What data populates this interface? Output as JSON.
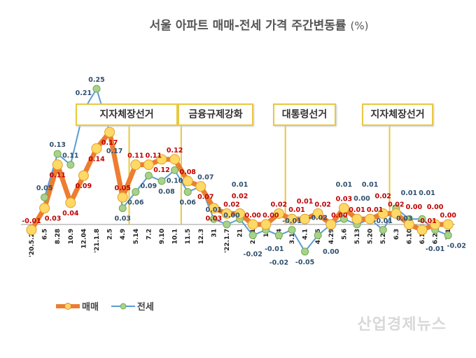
{
  "chart_data": {
    "type": "line",
    "title": "서울 아파트 매매-전세 가격 주간변동률",
    "title_unit": "(%)",
    "categories": [
      "'20.5.22",
      "6.5",
      "8.28",
      "10.9",
      "12.04",
      "'21.1.8",
      "2.5",
      "4.9",
      "5.14",
      "7.2",
      "9.10",
      "10.1",
      "11.5",
      "12.3",
      "31",
      "'22.1.7",
      "21",
      "2.11",
      "18",
      "3.4",
      "3.18",
      "4.1",
      "4.15",
      "4.29",
      "5.6",
      "5.13",
      "5.20",
      "5.27",
      "6.3",
      "6.10",
      "6.17",
      "6.24",
      "7.1"
    ],
    "series": [
      {
        "name": "매매",
        "color": "#ed7d31",
        "marker": "#ffd966",
        "label_color": "#c00000",
        "values": [
          -0.01,
          0.03,
          0.11,
          0.04,
          0.09,
          0.14,
          0.17,
          0.05,
          0.11,
          0.11,
          0.12,
          0.12,
          0.08,
          0.07,
          0.03,
          0.02,
          0.02,
          0.0,
          0.0,
          0.02,
          0.01,
          0.01,
          0.02,
          0.0,
          0.03,
          0.01,
          0.01,
          0.02,
          0.02,
          0.0,
          -0.01,
          0.0,
          0.0
        ]
      },
      {
        "name": "전세",
        "color": "#5b9bd5",
        "marker": "#a9d18e",
        "label_color": "#2f4f6f",
        "values": [
          null,
          0.05,
          0.13,
          0.11,
          0.21,
          0.25,
          0.17,
          0.03,
          0.06,
          0.09,
          0.08,
          0.1,
          0.06,
          0.07,
          0.01,
          0.0,
          0.01,
          -0.02,
          -0.01,
          -0.02,
          -0.01,
          -0.05,
          -0.02,
          0.0,
          0.01,
          0.0,
          0.01,
          -0.01,
          0.03,
          0.01,
          0.01,
          -0.01,
          -0.02
        ]
      }
    ],
    "annotations": [
      {
        "text": "지자체장선거",
        "after": "4.9"
      },
      {
        "text": "금융규제강화",
        "after": "10.1"
      },
      {
        "text": "대통령선거",
        "after": "3.4"
      },
      {
        "text": "지자체장선거",
        "after": "5.27"
      }
    ],
    "legend": "bottom-left",
    "grid": false
  },
  "watermark": "산업경제뉴스"
}
